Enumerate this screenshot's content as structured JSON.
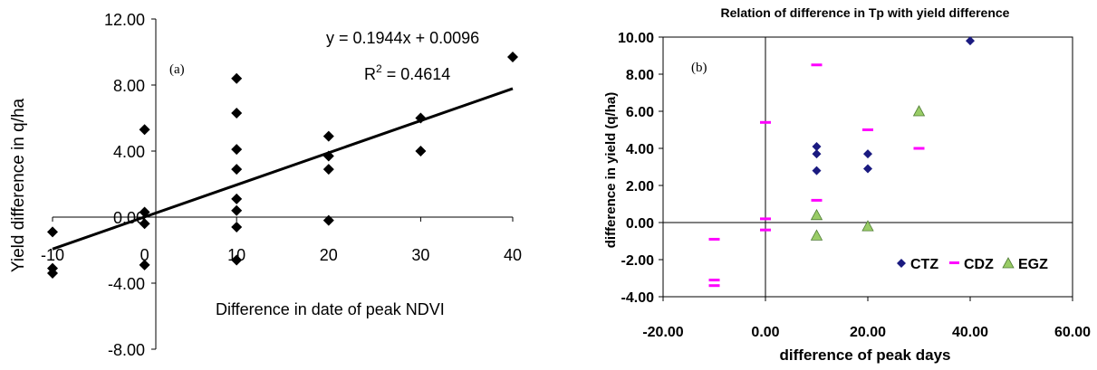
{
  "chart_data": [
    {
      "type": "scatter",
      "panel_label": "(a)",
      "title": "",
      "xlabel": "Difference in date of peak NDVI",
      "ylabel": "Yield difference in q/ha",
      "xlim": [
        -10,
        40
      ],
      "ylim": [
        -8,
        12
      ],
      "xticks": [
        "-10",
        "0",
        "10",
        "20",
        "30",
        "40"
      ],
      "yticks": [
        "-8.00",
        "-4.00",
        "0.00",
        "4.00",
        "8.00",
        "12.00"
      ],
      "grid": false,
      "series": [
        {
          "x": [
            -10,
            -10,
            -10,
            0,
            0,
            0,
            0,
            10,
            10,
            10,
            10,
            10,
            10,
            10,
            10,
            20,
            20,
            20,
            20,
            30,
            30,
            40
          ],
          "y": [
            -0.9,
            -3.1,
            -3.4,
            5.3,
            0.3,
            -0.4,
            -2.9,
            8.4,
            6.3,
            4.1,
            2.9,
            1.1,
            0.4,
            -0.6,
            -2.6,
            4.9,
            3.7,
            2.9,
            -0.2,
            6.0,
            4.0,
            9.7
          ],
          "marker": "diamond",
          "color": "#000000"
        }
      ],
      "trendline": {
        "slope": 0.1944,
        "intercept": 0.0096,
        "x_range": [
          -10,
          40
        ],
        "color": "#000000"
      },
      "annotations": {
        "equation": "y = 0.1944x + 0.0096",
        "r2_prefix": "R",
        "r2_sup": "2",
        "r2_rest": " = 0.4614"
      }
    },
    {
      "type": "scatter",
      "panel_label": "(b)",
      "title": "Relation of difference in Tp with yield difference",
      "xlabel": "difference of peak days",
      "ylabel": "difference in yield (q/ha)",
      "xlim": [
        -20,
        60
      ],
      "ylim": [
        -4,
        10
      ],
      "xticks": [
        "-20.00",
        "0.00",
        "20.00",
        "40.00",
        "60.00"
      ],
      "yticks": [
        "-4.00",
        "-2.00",
        "0.00",
        "2.00",
        "4.00",
        "6.00",
        "8.00",
        "10.00"
      ],
      "grid": false,
      "legend_position": "bottom-right",
      "series": [
        {
          "name": "CTZ",
          "marker": "diamond",
          "color": "#1a1a80",
          "x": [
            10,
            10,
            10,
            20,
            20,
            40
          ],
          "y": [
            4.1,
            3.7,
            2.8,
            3.7,
            2.9,
            9.8
          ]
        },
        {
          "name": "CDZ",
          "marker": "dash",
          "color": "#ff00ff",
          "x": [
            -10,
            -10,
            -10,
            0,
            0,
            0,
            10,
            10,
            20,
            30
          ],
          "y": [
            -0.9,
            -3.1,
            -3.4,
            5.4,
            0.2,
            -0.4,
            8.5,
            1.2,
            5.0,
            4.0
          ]
        },
        {
          "name": "EGZ",
          "marker": "triangle",
          "color": "#99cc66",
          "x": [
            10,
            10,
            20,
            30
          ],
          "y": [
            0.4,
            -0.7,
            -0.2,
            6.0
          ]
        }
      ]
    }
  ]
}
